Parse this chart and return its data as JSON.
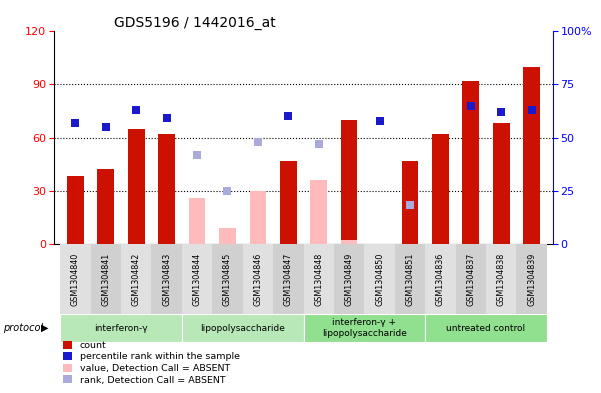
{
  "title": "GDS5196 / 1442016_at",
  "samples": [
    "GSM1304840",
    "GSM1304841",
    "GSM1304842",
    "GSM1304843",
    "GSM1304844",
    "GSM1304845",
    "GSM1304846",
    "GSM1304847",
    "GSM1304848",
    "GSM1304849",
    "GSM1304850",
    "GSM1304851",
    "GSM1304836",
    "GSM1304837",
    "GSM1304838",
    "GSM1304839"
  ],
  "red_bars": [
    38,
    42,
    65,
    62,
    0,
    0,
    0,
    47,
    0,
    70,
    0,
    47,
    62,
    92,
    68,
    100
  ],
  "pink_bars": [
    0,
    0,
    0,
    0,
    26,
    9,
    30,
    0,
    36,
    2,
    0,
    0,
    0,
    0,
    0,
    0
  ],
  "blue_sq": [
    57,
    55,
    63,
    59,
    0,
    0,
    0,
    60,
    0,
    0,
    58,
    0,
    0,
    65,
    62,
    63
  ],
  "lb_sq": [
    0,
    0,
    0,
    0,
    42,
    25,
    48,
    0,
    47,
    0,
    0,
    18,
    0,
    0,
    0,
    0
  ],
  "protocol_groups": [
    {
      "label": "interferon-γ",
      "start": 0,
      "end": 3,
      "color": "#b8e8b8"
    },
    {
      "label": "lipopolysaccharide",
      "start": 4,
      "end": 7,
      "color": "#b8e8b8"
    },
    {
      "label": "interferon-γ +\nlipopolysaccharide",
      "start": 8,
      "end": 11,
      "color": "#90e090"
    },
    {
      "label": "untreated control",
      "start": 12,
      "end": 15,
      "color": "#90e090"
    }
  ],
  "ylim_left": [
    0,
    120
  ],
  "ylim_right": [
    0,
    100
  ],
  "yticks_left": [
    0,
    30,
    60,
    90,
    120
  ],
  "yticks_right": [
    0,
    25,
    50,
    75,
    100
  ],
  "bar_color_red": "#cc1100",
  "bar_color_pink": "#ffbbbb",
  "square_color_blue": "#1a1acc",
  "square_color_lb": "#aaaadd",
  "grid_vals": [
    30,
    60,
    90
  ],
  "bar_width": 0.55,
  "sq_size": 28
}
